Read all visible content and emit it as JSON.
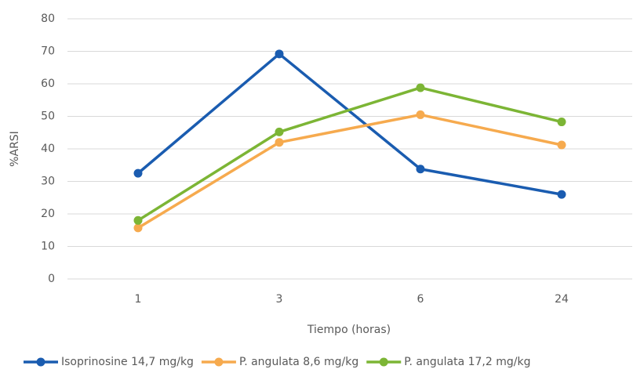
{
  "chart_data": {
    "type": "line",
    "categories": [
      "1",
      "3",
      "6",
      "24"
    ],
    "x_label": "Tiempo (horas)",
    "y_label": "%ARSI",
    "series": [
      {
        "name": "Isoprinosine 14,7 mg/kg",
        "color": "#1a5cb0",
        "values": [
          32.5,
          69.2,
          33.8,
          26
        ]
      },
      {
        "name": "P. angulata 8,6 mg/kg",
        "color": "#f6aa4e",
        "values": [
          15.7,
          42,
          50.5,
          41.2
        ]
      },
      {
        "name": "P. angulata 17,2 mg/kg",
        "color": "#7cb535",
        "values": [
          18,
          45.2,
          58.8,
          48.3
        ]
      }
    ],
    "ylim": [
      0,
      80
    ],
    "yticks": [
      0,
      10,
      20,
      30,
      40,
      50,
      60,
      70,
      80
    ],
    "grid": true,
    "legend": "bottom"
  }
}
